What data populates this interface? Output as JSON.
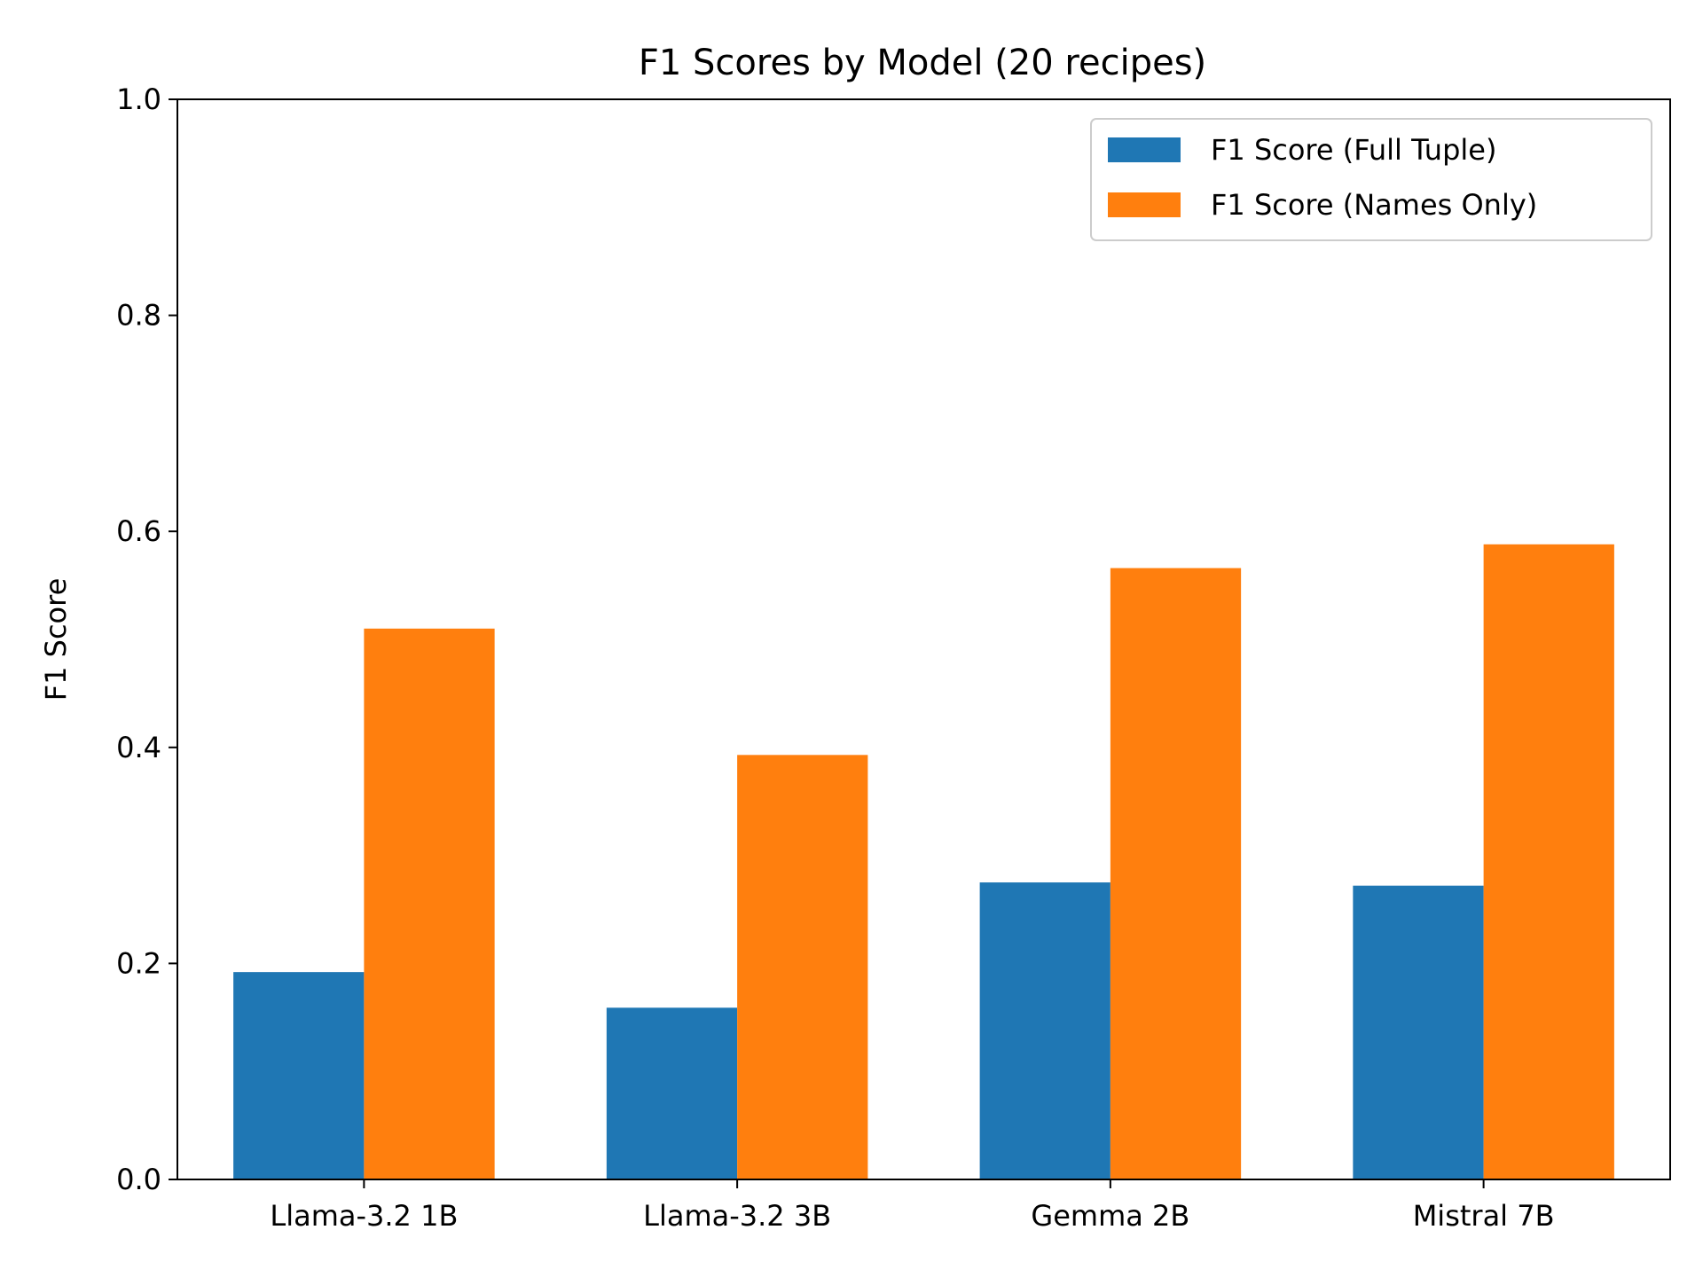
{
  "chart_data": {
    "type": "bar",
    "title": "F1 Scores by Model (20 recipes)",
    "xlabel": "",
    "ylabel": "F1 Score",
    "ylim": [
      0,
      1.0
    ],
    "yticks": [
      "0.0",
      "0.2",
      "0.4",
      "0.6",
      "0.8",
      "1.0"
    ],
    "categories": [
      "Llama-3.2 1B",
      "Llama-3.2 3B",
      "Gemma 2B",
      "Mistral 7B"
    ],
    "series": [
      {
        "name": "F1 Score (Full Tuple)",
        "color": "#1f77b4",
        "values": [
          0.192,
          0.159,
          0.275,
          0.272
        ]
      },
      {
        "name": "F1 Score (Names Only)",
        "color": "#ff7f0e",
        "values": [
          0.51,
          0.393,
          0.566,
          0.588
        ]
      }
    ],
    "legend": "top-right",
    "grid": false
  }
}
